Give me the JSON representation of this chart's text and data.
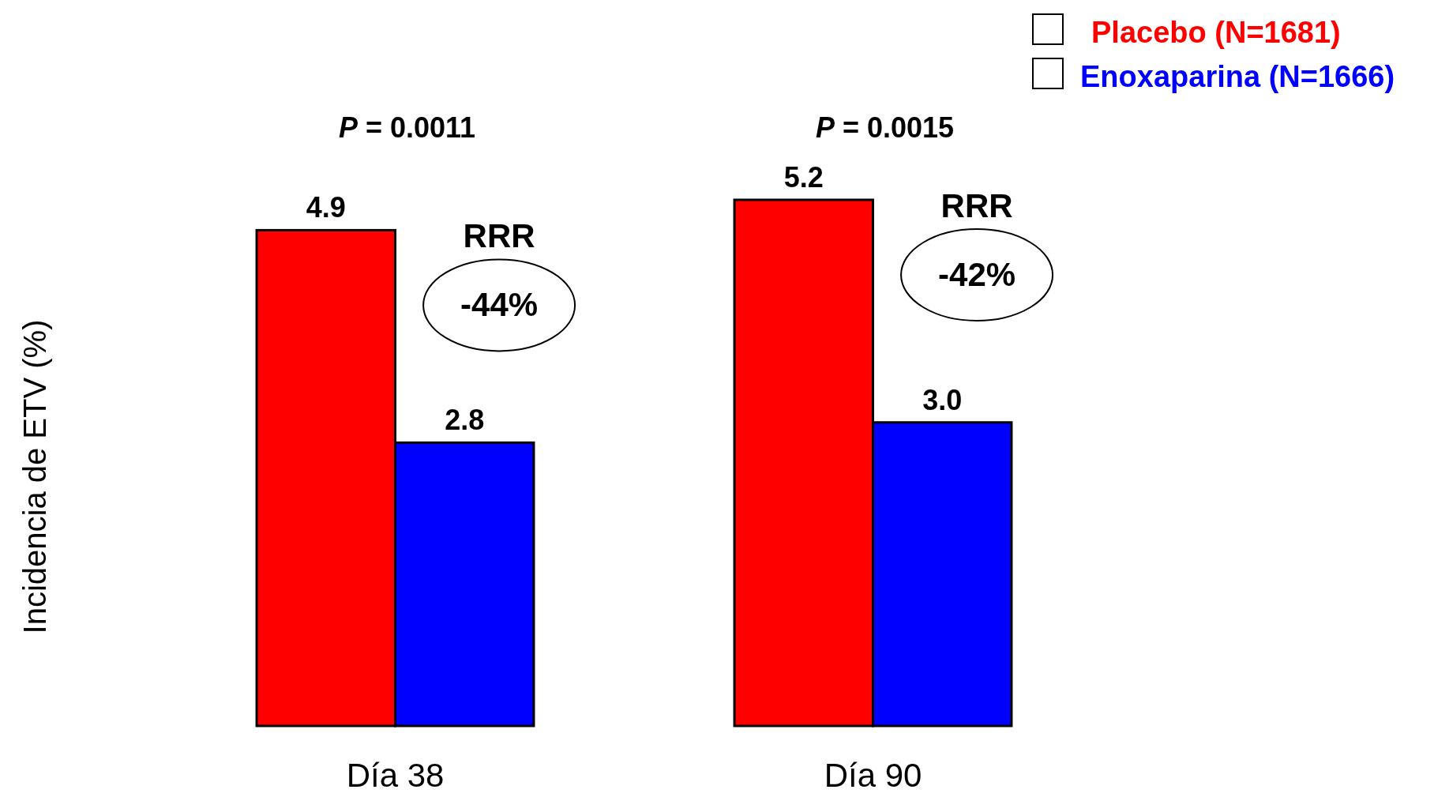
{
  "chart_data": {
    "type": "bar",
    "ylabel": "Incidencia de ETV (%)",
    "categories": [
      "Día 38",
      "Día 90"
    ],
    "series": [
      {
        "name": "Placebo (N=1681)",
        "color": "#ff0000",
        "values": [
          4.9,
          5.2
        ],
        "value_labels": [
          "4.9",
          "5.2"
        ]
      },
      {
        "name": "Enoxaparina (N=1666)",
        "color": "#0000ff",
        "values": [
          2.8,
          3.0
        ],
        "value_labels": [
          "2.8",
          "3.0"
        ]
      }
    ],
    "legend": "top right",
    "annotations": [
      "P = 0.0011",
      "RRR",
      "-44%",
      "P = 0.0015",
      "RRR",
      "-42%"
    ]
  }
}
